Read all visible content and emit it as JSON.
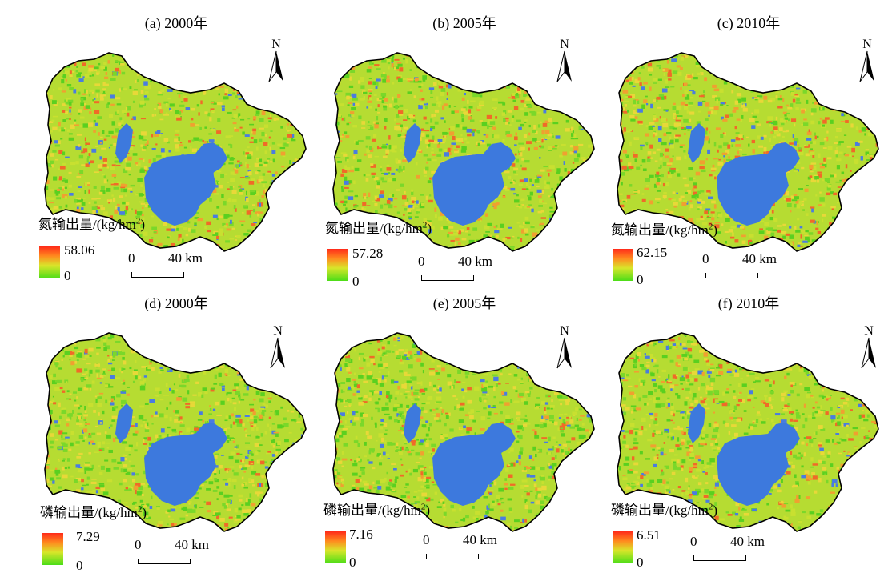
{
  "colors": {
    "legend_high": "#ff2a1a",
    "legend_mid": "#d8e62a",
    "legend_low": "#4cdd18",
    "water": "#3d79dd",
    "land_base": "#b6dc32"
  },
  "north_label": "N",
  "scale": {
    "zero": "0",
    "distance": "40 km"
  },
  "legend_min": "0",
  "nitrogen_label": "氮输出量/(kg/hm",
  "phosphorus_label": "磷输出量/(kg/hm",
  "unit_tail": ")",
  "unit_sup": "2",
  "panels": [
    {
      "title": "(a) 2000年",
      "max": "58.06",
      "nutrient": "nitrogen",
      "hot": 0.22
    },
    {
      "title": "(b) 2005年",
      "max": "57.28",
      "nutrient": "nitrogen",
      "hot": 0.24
    },
    {
      "title": "(c) 2010年",
      "max": "62.15",
      "nutrient": "nitrogen",
      "hot": 0.28
    },
    {
      "title": "(d) 2000年",
      "max": "7.29",
      "nutrient": "phosphorus",
      "hot": 0.12
    },
    {
      "title": "(e) 2005年",
      "max": "7.16",
      "nutrient": "phosphorus",
      "hot": 0.14
    },
    {
      "title": "(f) 2010年",
      "max": "6.51",
      "nutrient": "phosphorus",
      "hot": 0.24
    }
  ]
}
